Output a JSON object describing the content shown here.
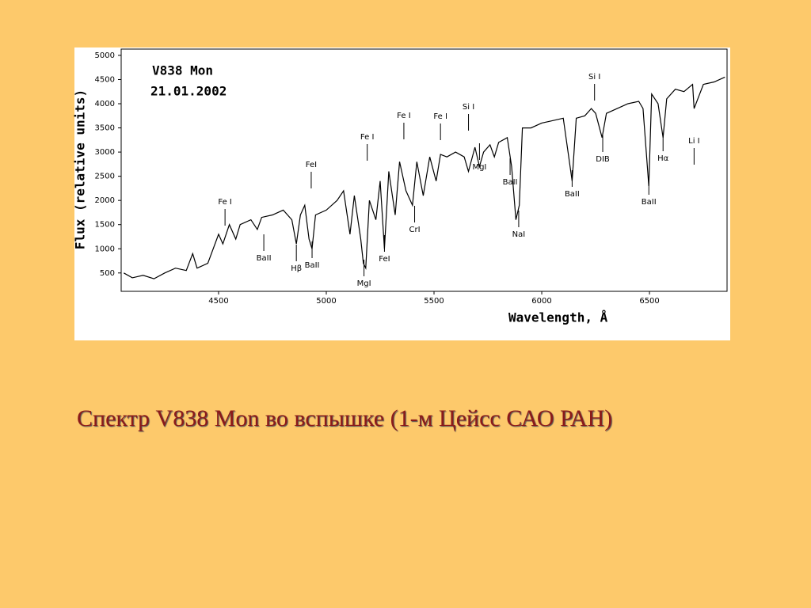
{
  "chart_data": {
    "type": "line",
    "title": "V838 Mon",
    "subtitle": "21.01.2002",
    "x_label": "Wavelength, Å",
    "y_label": "Flux (relative units)",
    "color": "#000000",
    "x": [
      4060,
      4100,
      4150,
      4200,
      4250,
      4300,
      4350,
      4380,
      4400,
      4450,
      4500,
      4520,
      4550,
      4580,
      4600,
      4650,
      4680,
      4700,
      4750,
      4800,
      4840,
      4861,
      4880,
      4900,
      4920,
      4934,
      4950,
      5000,
      5050,
      5080,
      5110,
      5130,
      5160,
      5172,
      5183,
      5200,
      5230,
      5250,
      5270,
      5290,
      5320,
      5340,
      5370,
      5400,
      5420,
      5450,
      5480,
      5510,
      5530,
      5560,
      5600,
      5640,
      5660,
      5690,
      5711,
      5730,
      5760,
      5780,
      5800,
      5840,
      5860,
      5880,
      5896,
      5910,
      5950,
      6000,
      6050,
      6100,
      6141,
      6160,
      6200,
      6230,
      6250,
      6280,
      6300,
      6350,
      6400,
      6450,
      6470,
      6497,
      6510,
      6540,
      6563,
      6580,
      6620,
      6660,
      6700,
      6707,
      6750,
      6800,
      6850
    ],
    "values": [
      500,
      400,
      450,
      380,
      500,
      600,
      550,
      900,
      600,
      700,
      1300,
      1100,
      1500,
      1200,
      1500,
      1600,
      1400,
      1650,
      1700,
      1800,
      1600,
      1100,
      1700,
      1900,
      1200,
      1000,
      1700,
      1800,
      2000,
      2200,
      1300,
      2100,
      1200,
      700,
      600,
      2000,
      1600,
      2400,
      1000,
      2600,
      1700,
      2800,
      2200,
      1900,
      2800,
      2100,
      2900,
      2400,
      2950,
      2900,
      3000,
      2900,
      2600,
      3100,
      2700,
      3000,
      3150,
      2900,
      3200,
      3300,
      2700,
      1600,
      1900,
      3500,
      3500,
      3600,
      3650,
      3700,
      2400,
      3700,
      3750,
      3900,
      3800,
      3300,
      3800,
      3900,
      4000,
      4050,
      3900,
      2300,
      4200,
      4000,
      3300,
      4100,
      4300,
      4250,
      4400,
      3900,
      4400,
      4450,
      4550
    ],
    "xlim": [
      4048,
      6860
    ],
    "ylim": [
      120,
      5130
    ],
    "xticks": [
      4500,
      5000,
      5500,
      6000,
      6500
    ],
    "yticks": [
      500,
      1000,
      1500,
      2000,
      2500,
      3000,
      3500,
      4000,
      4500,
      5000
    ],
    "annotations": [
      {
        "text": "Fe I",
        "x": 4530
      },
      {
        "text": "FeI",
        "x": 4930
      },
      {
        "text": "Fe I",
        "x": 5190
      },
      {
        "text": "Fe I",
        "x": 5360
      },
      {
        "text": "Fe I",
        "x": 5530
      },
      {
        "text": "Si I",
        "x": 5660
      },
      {
        "text": "Si I",
        "x": 6245
      },
      {
        "text": "BaII",
        "x": 4710
      },
      {
        "text": "Hβ",
        "x": 4861
      },
      {
        "text": "BaII",
        "x": 4934
      },
      {
        "text": "MgI",
        "x": 5175
      },
      {
        "text": "FeI",
        "x": 5270
      },
      {
        "text": "CrI",
        "x": 5410
      },
      {
        "text": "MgI",
        "x": 5711
      },
      {
        "text": "BaII",
        "x": 5853
      },
      {
        "text": "NaI",
        "x": 5893
      },
      {
        "text": "BaII",
        "x": 6141
      },
      {
        "text": "DIB",
        "x": 6283
      },
      {
        "text": "Hα",
        "x": 6563
      },
      {
        "text": "BaII",
        "x": 6497
      },
      {
        "text": "Li I",
        "x": 6707
      }
    ]
  },
  "caption": "Спектр V838 Mon во вспышке (1-м Цейсс САО РАН)"
}
